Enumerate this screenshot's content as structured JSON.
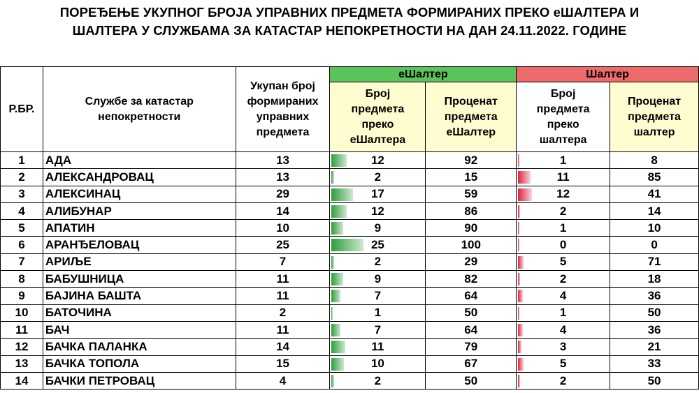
{
  "title": {
    "line1": "ПОРЕЂЕЊЕ УКУПНОГ БРОЈА УПРАВНИХ ПРЕДМЕТА ФОРМИРАНИХ ПРЕКО еШАЛТЕРА И",
    "line2": "ШАЛТЕРА У СЛУЖБАМА ЗА КАТАСТАР НЕПОКРЕТНОСТИ НА ДАН 24.11.2022. ГОДИНЕ"
  },
  "headers": {
    "rbr": "Р.БР.",
    "office": "Службе за катастар непокретности",
    "total": "Укупан број формираних управних предмета",
    "eshalter_group": "еШалтер",
    "eshalter_count": "Број предмета преко еШалтера",
    "eshalter_pct": "Проценат предмета еШалтер",
    "shalter_group": "Шалтер",
    "shalter_count": "Број предмета преко шалтера",
    "shalter_pct": "Проценат предмета шалтер"
  },
  "colors": {
    "eshalter_header": "#5ac45a",
    "shalter_header": "#ee6b6b",
    "cream": "#fffccf",
    "green_bar": "#2e9e3c",
    "red_bar": "#e0233a"
  },
  "rows": [
    {
      "rbr": "1",
      "name": "АДА",
      "total": "13",
      "e_count": "12",
      "e_pct": "92",
      "s_count": "1",
      "s_pct": "8"
    },
    {
      "rbr": "2",
      "name": "АЛЕКСАНДРОВАЦ",
      "total": "13",
      "e_count": "2",
      "e_pct": "15",
      "s_count": "11",
      "s_pct": "85"
    },
    {
      "rbr": "3",
      "name": "АЛЕКСИНАЦ",
      "total": "29",
      "e_count": "17",
      "e_pct": "59",
      "s_count": "12",
      "s_pct": "41"
    },
    {
      "rbr": "4",
      "name": "АЛИБУНАР",
      "total": "14",
      "e_count": "12",
      "e_pct": "86",
      "s_count": "2",
      "s_pct": "14"
    },
    {
      "rbr": "5",
      "name": "АПАТИН",
      "total": "10",
      "e_count": "9",
      "e_pct": "90",
      "s_count": "1",
      "s_pct": "10"
    },
    {
      "rbr": "6",
      "name": "АРАНЂЕЛОВАЦ",
      "total": "25",
      "e_count": "25",
      "e_pct": "100",
      "s_count": "0",
      "s_pct": "0"
    },
    {
      "rbr": "7",
      "name": "АРИЉЕ",
      "total": "7",
      "e_count": "2",
      "e_pct": "29",
      "s_count": "5",
      "s_pct": "71"
    },
    {
      "rbr": "8",
      "name": "БАБУШНИЦА",
      "total": "11",
      "e_count": "9",
      "e_pct": "82",
      "s_count": "2",
      "s_pct": "18"
    },
    {
      "rbr": "9",
      "name": "БАЈИНА БАШТА",
      "total": "11",
      "e_count": "7",
      "e_pct": "64",
      "s_count": "4",
      "s_pct": "36"
    },
    {
      "rbr": "10",
      "name": "БАТОЧИНА",
      "total": "2",
      "e_count": "1",
      "e_pct": "50",
      "s_count": "1",
      "s_pct": "50"
    },
    {
      "rbr": "11",
      "name": "БАЧ",
      "total": "11",
      "e_count": "7",
      "e_pct": "64",
      "s_count": "4",
      "s_pct": "36"
    },
    {
      "rbr": "12",
      "name": "БАЧКА ПАЛАНКА",
      "total": "14",
      "e_count": "11",
      "e_pct": "79",
      "s_count": "3",
      "s_pct": "21"
    },
    {
      "rbr": "13",
      "name": "БАЧКА ТОПОЛА",
      "total": "15",
      "e_count": "10",
      "e_pct": "67",
      "s_count": "5",
      "s_pct": "33"
    },
    {
      "rbr": "14",
      "name": "БАЧКИ ПЕТРОВАЦ",
      "total": "4",
      "e_count": "2",
      "e_pct": "50",
      "s_count": "2",
      "s_pct": "50"
    }
  ]
}
